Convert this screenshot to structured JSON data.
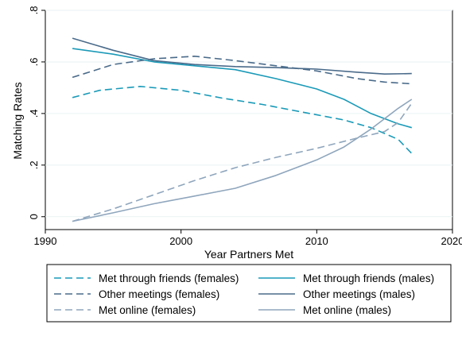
{
  "chart_data": {
    "type": "line",
    "title": "",
    "xlabel": "Year Partners Met",
    "ylabel": "Matching Rates",
    "xlim": [
      1990,
      2020
    ],
    "ylim": [
      -0.05,
      0.8
    ],
    "x_ticks": [
      1990,
      2000,
      2010,
      2020
    ],
    "x_tick_labels": [
      "1990",
      "2000",
      "2010",
      "2020"
    ],
    "y_ticks": [
      0,
      0.2,
      0.4,
      0.6,
      0.8
    ],
    "y_tick_labels": [
      "0",
      ".2",
      ".4",
      ".6",
      ".8"
    ],
    "grid": "horizontal",
    "legend_position": "bottom",
    "series": [
      {
        "name": "Met through friends (females)",
        "color": "#1a9ab8",
        "dash": "dashed",
        "points": [
          [
            1992,
            0.462
          ],
          [
            1994,
            0.49
          ],
          [
            1997,
            0.505
          ],
          [
            2000,
            0.49
          ],
          [
            2003,
            0.46
          ],
          [
            2006,
            0.435
          ],
          [
            2009,
            0.405
          ],
          [
            2012,
            0.375
          ],
          [
            2014,
            0.345
          ],
          [
            2016,
            0.3
          ],
          [
            2017,
            0.245
          ]
        ]
      },
      {
        "name": "Met through friends (males)",
        "color": "#1a9ab8",
        "dash": "solid",
        "points": [
          [
            1992,
            0.652
          ],
          [
            1995,
            0.63
          ],
          [
            1998,
            0.6
          ],
          [
            2001,
            0.585
          ],
          [
            2004,
            0.57
          ],
          [
            2007,
            0.535
          ],
          [
            2010,
            0.495
          ],
          [
            2012,
            0.455
          ],
          [
            2014,
            0.4
          ],
          [
            2016,
            0.36
          ],
          [
            2017,
            0.345
          ]
        ]
      },
      {
        "name": "Other meetings (females)",
        "color": "#4a6b8a",
        "dash": "dashed",
        "points": [
          [
            1992,
            0.54
          ],
          [
            1995,
            0.59
          ],
          [
            1998,
            0.612
          ],
          [
            2001,
            0.622
          ],
          [
            2004,
            0.605
          ],
          [
            2007,
            0.585
          ],
          [
            2010,
            0.565
          ],
          [
            2013,
            0.535
          ],
          [
            2015,
            0.522
          ],
          [
            2017,
            0.515
          ]
        ]
      },
      {
        "name": "Other meetings (males)",
        "color": "#4a6b8a",
        "dash": "solid",
        "points": [
          [
            1992,
            0.692
          ],
          [
            1995,
            0.645
          ],
          [
            1998,
            0.605
          ],
          [
            2001,
            0.59
          ],
          [
            2004,
            0.582
          ],
          [
            2007,
            0.578
          ],
          [
            2010,
            0.572
          ],
          [
            2013,
            0.56
          ],
          [
            2015,
            0.553
          ],
          [
            2017,
            0.555
          ]
        ]
      },
      {
        "name": "Met online (females)",
        "color": "#8fa6bd",
        "dash": "dashed",
        "points": [
          [
            1992,
            -0.018
          ],
          [
            1995,
            0.03
          ],
          [
            1998,
            0.085
          ],
          [
            2001,
            0.14
          ],
          [
            2004,
            0.19
          ],
          [
            2007,
            0.23
          ],
          [
            2010,
            0.265
          ],
          [
            2013,
            0.305
          ],
          [
            2015,
            0.33
          ],
          [
            2016,
            0.365
          ],
          [
            2017,
            0.44
          ]
        ]
      },
      {
        "name": "Met online (males)",
        "color": "#8fa6bd",
        "dash": "solid",
        "points": [
          [
            1992,
            -0.018
          ],
          [
            1995,
            0.015
          ],
          [
            1998,
            0.05
          ],
          [
            2001,
            0.08
          ],
          [
            2004,
            0.11
          ],
          [
            2007,
            0.16
          ],
          [
            2010,
            0.22
          ],
          [
            2012,
            0.27
          ],
          [
            2014,
            0.34
          ],
          [
            2016,
            0.42
          ],
          [
            2017,
            0.455
          ]
        ]
      }
    ],
    "legend": [
      {
        "label": "Met through friends (females)",
        "series": 0
      },
      {
        "label": "Met through friends (males)",
        "series": 1
      },
      {
        "label": "Other meetings (females)",
        "series": 2
      },
      {
        "label": "Other meetings (males)",
        "series": 3
      },
      {
        "label": "Met online (females)",
        "series": 4
      },
      {
        "label": "Met online (males)",
        "series": 5
      }
    ]
  }
}
